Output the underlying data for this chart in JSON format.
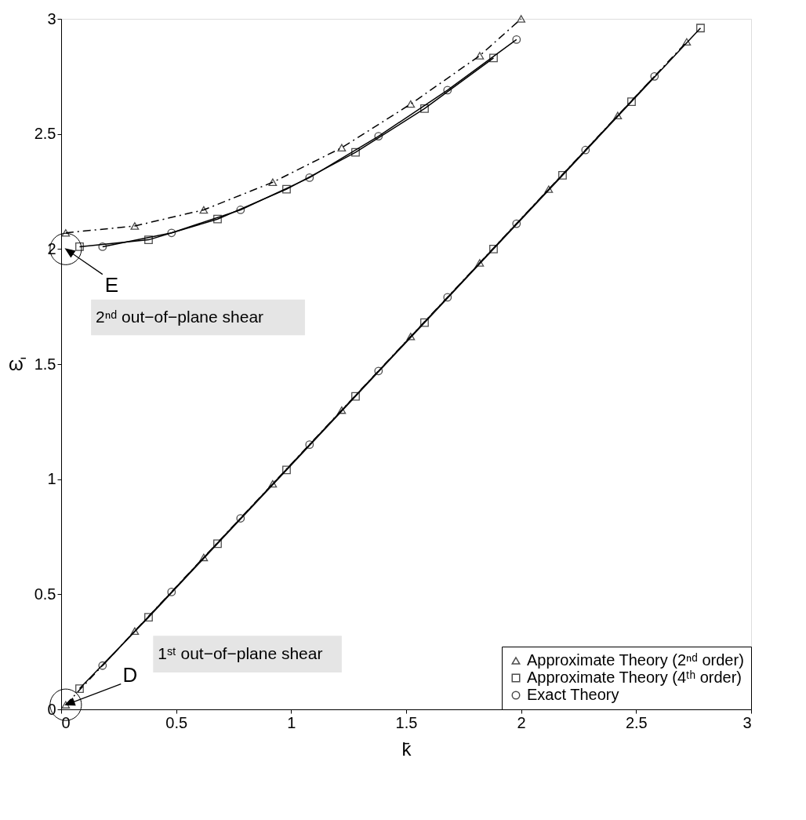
{
  "chart_data": {
    "type": "line",
    "xlabel": "k̄",
    "ylabel": "ω̄",
    "xlim": [
      0,
      3
    ],
    "ylim": [
      0,
      3
    ],
    "xticks": [
      0,
      0.5,
      1,
      1.5,
      2,
      2.5,
      3
    ],
    "yticks": [
      0,
      0.5,
      1,
      1.5,
      2,
      2.5,
      3
    ],
    "grid": false,
    "legend": "bottom right",
    "series": [
      {
        "name": "Approximate Theory (2ⁿᵈ order)",
        "color": "#000000",
        "marker": "triangle",
        "line_style": "dashed",
        "x": [
          0.02,
          0.32,
          0.62,
          0.92,
          1.22,
          1.52,
          1.82,
          2.0
        ],
        "values": [
          2.07,
          2.1,
          2.17,
          2.29,
          2.44,
          2.63,
          2.84,
          3.0
        ]
      },
      {
        "name": "Approximate Theory (4ᵗʰ order)",
        "color": "#000000",
        "marker": "square",
        "line_style": "solid",
        "x": [
          0.08,
          0.38,
          0.68,
          0.98,
          1.28,
          1.58,
          1.88
        ],
        "values": [
          2.01,
          2.04,
          2.13,
          2.26,
          2.42,
          2.61,
          2.83
        ]
      },
      {
        "name": "Exact Theory",
        "color": "#000000",
        "marker": "circle",
        "line_style": "solid",
        "x": [
          0.18,
          0.48,
          0.78,
          1.08,
          1.38,
          1.68,
          1.98
        ],
        "values": [
          2.01,
          2.07,
          2.17,
          2.31,
          2.49,
          2.69,
          2.91
        ]
      },
      {
        "color": "#000000",
        "marker": "triangle",
        "line_style": "dashed",
        "x": [
          0.02,
          0.32,
          0.62,
          0.92,
          1.22,
          1.52,
          1.82,
          2.12,
          2.42,
          2.72
        ],
        "values": [
          0.02,
          0.34,
          0.66,
          0.98,
          1.3,
          1.62,
          1.94,
          2.26,
          2.58,
          2.9
        ]
      },
      {
        "color": "#000000",
        "marker": "square",
        "line_style": "solid",
        "x": [
          0.08,
          0.38,
          0.68,
          0.98,
          1.28,
          1.58,
          1.88,
          2.18,
          2.48,
          2.78
        ],
        "values": [
          0.09,
          0.4,
          0.72,
          1.04,
          1.36,
          1.68,
          2.0,
          2.32,
          2.64,
          2.96
        ]
      },
      {
        "color": "#000000",
        "marker": "circle",
        "line_style": "solid",
        "x": [
          0.18,
          0.48,
          0.78,
          1.08,
          1.38,
          1.68,
          1.98,
          2.28,
          2.58
        ],
        "values": [
          0.19,
          0.51,
          0.83,
          1.15,
          1.47,
          1.79,
          2.11,
          2.43,
          2.75
        ]
      }
    ],
    "annotations": [
      {
        "text": "E",
        "x": 0.02,
        "y": 2.0
      },
      {
        "text": "D",
        "x": 0.02,
        "y": 0.02
      },
      "2ⁿᵈ out−of−plane shear",
      "1ˢᵗ out−of−plane shear"
    ]
  }
}
